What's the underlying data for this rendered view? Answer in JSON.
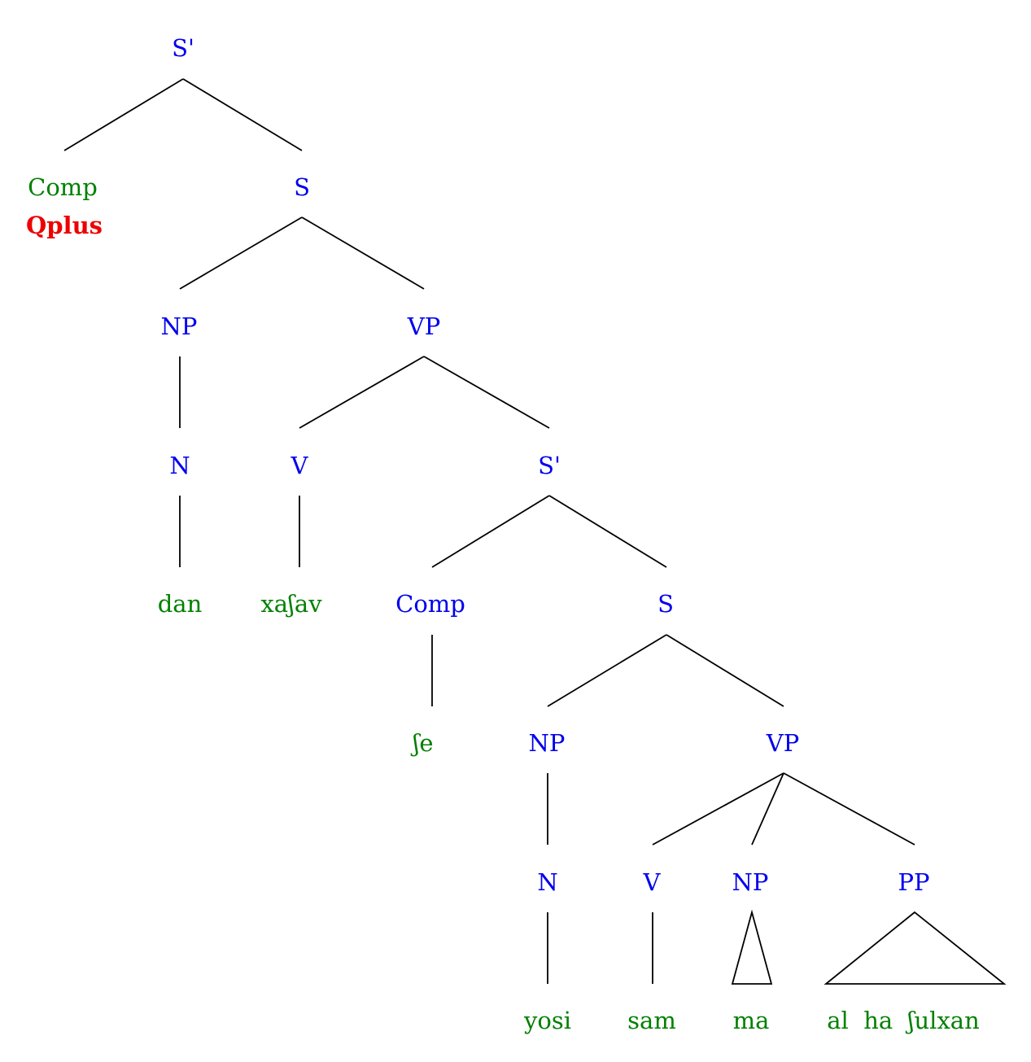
{
  "colors": {
    "category": "#0000ee",
    "word": "#008000",
    "feature": "#ee0000",
    "line": "#000000"
  },
  "nodes": {
    "s_bar_1": "S'",
    "comp_1": "Comp",
    "qplus": "Qplus",
    "s_1": "S",
    "np_1": "NP",
    "vp_1": "VP",
    "n_1": "N",
    "v_1": "V",
    "s_bar_2": "S'",
    "dan": "dan",
    "xashav": "xaʃav",
    "comp_2": "Comp",
    "s_2": "S",
    "she": "ʃe",
    "np_2": "NP",
    "vp_2": "VP",
    "n_2": "N",
    "v_2": "V",
    "np_3": "NP",
    "pp_1": "PP",
    "yosi": "yosi",
    "sam": "sam",
    "ma": "ma",
    "al_ha_shulxan": "al  ha  ʃulxan"
  }
}
